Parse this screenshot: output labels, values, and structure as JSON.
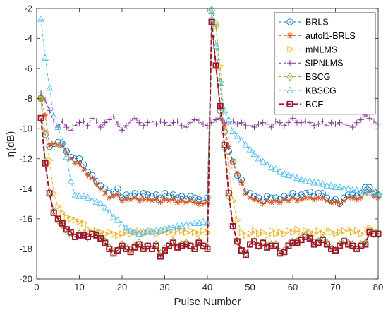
{
  "chart_data": {
    "type": "line",
    "xlabel": "Pulse Number",
    "ylabel": "η(dB)",
    "xlim": [
      0,
      80
    ],
    "ylim": [
      -20,
      -2
    ],
    "xticks": [
      0,
      10,
      20,
      30,
      40,
      50,
      60,
      70,
      80
    ],
    "yticks": [
      -20,
      -18,
      -16,
      -14,
      -12,
      -10,
      -8,
      -6,
      -4,
      -2
    ],
    "grid": false,
    "legend_position": "top-right",
    "x": [
      1,
      2,
      3,
      4,
      5,
      6,
      7,
      8,
      9,
      10,
      11,
      12,
      13,
      14,
      15,
      16,
      17,
      18,
      19,
      20,
      21,
      22,
      23,
      24,
      25,
      26,
      27,
      28,
      29,
      30,
      31,
      32,
      33,
      34,
      35,
      36,
      37,
      38,
      39,
      40,
      41,
      42,
      43,
      44,
      45,
      46,
      47,
      48,
      49,
      50,
      51,
      52,
      53,
      54,
      55,
      56,
      57,
      58,
      59,
      60,
      61,
      62,
      63,
      64,
      65,
      66,
      67,
      68,
      69,
      70,
      71,
      72,
      73,
      74,
      75,
      76,
      77,
      78,
      79,
      80
    ],
    "series": [
      {
        "name": "BRLS",
        "color": "#0072BD",
        "marker": "circle",
        "dash": "4,3",
        "width": 1,
        "values": [
          -8.0,
          -10.4,
          -11.2,
          -11.0,
          -10.9,
          -11.0,
          -11.5,
          -11.9,
          -12.0,
          -12.0,
          -12.4,
          -12.9,
          -13.1,
          -13.5,
          -13.8,
          -14.0,
          -14.3,
          -14.2,
          -14.0,
          -14.6,
          -14.4,
          -14.5,
          -14.3,
          -14.5,
          -14.3,
          -14.4,
          -14.5,
          -14.4,
          -14.6,
          -14.3,
          -14.5,
          -14.4,
          -14.6,
          -14.5,
          -14.7,
          -14.5,
          -14.6,
          -14.7,
          -14.8,
          -14.6,
          -2.8,
          -5.8,
          -8.8,
          -10.2,
          -11.5,
          -12.2,
          -13.1,
          -13.4,
          -14.2,
          -14.3,
          -14.5,
          -14.6,
          -14.8,
          -14.5,
          -14.6,
          -14.6,
          -14.7,
          -14.5,
          -14.6,
          -14.3,
          -14.5,
          -14.4,
          -14.3,
          -14.2,
          -14.5,
          -14.3,
          -14.3,
          -14.6,
          -14.8,
          -14.7,
          -15.0,
          -14.6,
          -14.4,
          -14.4,
          -14.5,
          -14.3,
          -13.9,
          -13.9,
          -14.2,
          -14.4
        ]
      },
      {
        "name": "autol1-BRLS",
        "color": "#D95319",
        "marker": "asterisk",
        "dash": "4,3",
        "width": 1,
        "values": [
          -8.0,
          -9.1,
          -11.1,
          -11.0,
          -11.1,
          -11.1,
          -11.6,
          -12.0,
          -12.3,
          -12.3,
          -12.7,
          -13.1,
          -13.3,
          -13.7,
          -14.0,
          -14.3,
          -14.6,
          -14.5,
          -14.4,
          -14.8,
          -14.7,
          -14.7,
          -14.6,
          -14.8,
          -14.7,
          -14.7,
          -14.8,
          -14.7,
          -14.9,
          -14.7,
          -14.8,
          -14.7,
          -14.9,
          -14.8,
          -14.9,
          -14.8,
          -14.9,
          -15.0,
          -15.0,
          -14.9,
          -2.9,
          -5.9,
          -8.6,
          -9.8,
          -11.2,
          -12.2,
          -13.0,
          -13.6,
          -14.3,
          -14.6,
          -14.7,
          -14.8,
          -15.0,
          -14.8,
          -14.9,
          -14.8,
          -14.9,
          -14.7,
          -14.8,
          -14.6,
          -14.8,
          -14.7,
          -14.6,
          -14.6,
          -14.7,
          -14.6,
          -14.6,
          -14.8,
          -14.9,
          -14.9,
          -15.0,
          -14.8,
          -14.6,
          -14.6,
          -14.7,
          -14.6,
          -14.3,
          -14.2,
          -14.5,
          -14.6
        ]
      },
      {
        "name": "mNLMS",
        "color": "#EDB120",
        "marker": "triangle-right",
        "dash": "4,3",
        "width": 1,
        "values": [
          -8.0,
          -10.2,
          -12.1,
          -14.3,
          -15.2,
          -15.6,
          -15.9,
          -16.0,
          -16.1,
          -16.2,
          -16.3,
          -16.7,
          -16.9,
          -16.8,
          -16.9,
          -17.0,
          -16.9,
          -17.0,
          -17.1,
          -17.0,
          -16.9,
          -17.0,
          -16.9,
          -16.8,
          -17.0,
          -16.9,
          -16.8,
          -17.0,
          -16.9,
          -16.8,
          -16.9,
          -17.0,
          -16.7,
          -16.8,
          -16.9,
          -16.8,
          -16.9,
          -17.0,
          -16.8,
          -16.9,
          -2.9,
          -3.2,
          -5.8,
          -10.0,
          -12.6,
          -14.8,
          -16.1,
          -16.9,
          -17.1,
          -17.0,
          -16.8,
          -17.0,
          -16.9,
          -17.1,
          -16.8,
          -17.0,
          -16.9,
          -17.0,
          -16.8,
          -16.9,
          -16.7,
          -17.0,
          -16.8,
          -16.9,
          -17.0,
          -16.8,
          -17.0,
          -16.7,
          -16.9,
          -17.0,
          -16.9,
          -16.8,
          -16.7,
          -16.9,
          -16.8,
          -17.0,
          -16.7,
          -16.6,
          -16.8,
          -16.9
        ]
      },
      {
        "name": "$IPNLMS",
        "color": "#7E2F8E",
        "marker": "plus",
        "dash": "4,3",
        "width": 1,
        "values": [
          -7.6,
          -8.1,
          -8.8,
          -9.5,
          -9.9,
          -9.5,
          -9.9,
          -10.1,
          -9.8,
          -9.6,
          -9.5,
          -9.8,
          -9.3,
          -9.5,
          -9.9,
          -9.6,
          -9.4,
          -9.2,
          -9.7,
          -10.1,
          -9.8,
          -9.5,
          -9.3,
          -9.6,
          -9.8,
          -9.6,
          -9.5,
          -9.7,
          -9.5,
          -9.6,
          -9.8,
          -9.6,
          -9.5,
          -9.8,
          -9.9,
          -9.6,
          -9.4,
          -9.5,
          -9.7,
          -9.8,
          -9.6,
          -9.4,
          -9.3,
          -9.6,
          -9.7,
          -9.5,
          -9.7,
          -9.6,
          -9.8,
          -9.8,
          -9.9,
          -9.7,
          -9.6,
          -9.7,
          -9.9,
          -9.5,
          -9.6,
          -9.8,
          -9.6,
          -9.3,
          -9.6,
          -9.6,
          -9.5,
          -9.6,
          -9.8,
          -9.7,
          -9.5,
          -9.8,
          -9.6,
          -9.7,
          -9.6,
          -9.7,
          -9.8,
          -9.9,
          -9.6,
          -9.4,
          -9.1,
          -9.3,
          -9.5,
          -9.7
        ]
      },
      {
        "name": "BSCG",
        "color": "#77AC30",
        "marker": "diamond",
        "dash": "4,3",
        "width": 1,
        "values": [
          -7.9,
          -12.2,
          -14.2,
          -15.5,
          -16.1,
          -16.4,
          -16.8,
          -17.0,
          -17.2,
          -17.0,
          -17.0,
          -17.2,
          -17.0,
          -17.0,
          -17.2,
          -17.5,
          -17.9,
          -18.2,
          -18.1,
          -17.7,
          -17.9,
          -18.1,
          -17.8,
          -17.6,
          -17.9,
          -17.8,
          -18.0,
          -17.7,
          -18.3,
          -18.0,
          -17.7,
          -17.5,
          -17.9,
          -17.7,
          -17.6,
          -17.8,
          -17.9,
          -17.5,
          -17.8,
          -17.9,
          -2.1,
          -3.0,
          -6.9,
          -11.3,
          -14.5,
          -16.5,
          -17.5,
          -18.1,
          -18.3,
          -17.7,
          -17.5,
          -17.8,
          -17.6,
          -17.8,
          -17.7,
          -17.7,
          -18.2,
          -18.1,
          -17.7,
          -17.5,
          -17.5,
          -17.3,
          -17.1,
          -17.2,
          -17.6,
          -17.5,
          -17.3,
          -17.6,
          -17.9,
          -18.1,
          -17.7,
          -17.4,
          -17.6,
          -17.7,
          -17.9,
          -17.7,
          -17.6,
          -16.8,
          -17.0,
          -17.0
        ]
      },
      {
        "name": "KBSCG",
        "color": "#4DBEEE",
        "marker": "triangle-up",
        "dash": "4,3",
        "width": 1,
        "values": [
          -2.7,
          -5.3,
          -7.3,
          -9.2,
          -9.9,
          -10.9,
          -11.9,
          -13.5,
          -14.4,
          -14.5,
          -14.5,
          -14.6,
          -14.8,
          -14.9,
          -15.0,
          -15.3,
          -15.6,
          -15.9,
          -16.1,
          -16.4,
          -16.6,
          -16.8,
          -16.9,
          -17.0,
          -16.9,
          -16.8,
          -16.9,
          -16.8,
          -16.8,
          -16.7,
          -16.6,
          -16.6,
          -16.5,
          -16.5,
          -16.4,
          -16.4,
          -16.3,
          -16.3,
          -16.2,
          -16.3,
          -2.2,
          -4.5,
          -7.0,
          -8.8,
          -9.4,
          -10.2,
          -10.5,
          -10.8,
          -11.1,
          -11.4,
          -11.7,
          -12.0,
          -12.2,
          -12.4,
          -12.6,
          -12.7,
          -12.9,
          -13.0,
          -13.1,
          -13.2,
          -13.3,
          -13.4,
          -13.5,
          -13.5,
          -13.6,
          -13.6,
          -13.7,
          -13.8,
          -13.8,
          -13.9,
          -13.9,
          -14.0,
          -14.0,
          -14.1,
          -14.1,
          -14.2,
          -14.2,
          -14.3,
          -14.3,
          -14.4
        ]
      },
      {
        "name": "BCE",
        "color": "#A2142F",
        "marker": "square",
        "dash": "7,3",
        "width": 2,
        "values": [
          -9.3,
          -12.3,
          -14.3,
          -15.6,
          -16.0,
          -16.3,
          -16.7,
          -16.9,
          -17.2,
          -17.1,
          -17.1,
          -17.2,
          -17.0,
          -17.1,
          -17.3,
          -17.6,
          -18.0,
          -18.3,
          -18.1,
          -17.8,
          -18.0,
          -18.2,
          -17.9,
          -17.7,
          -18.0,
          -17.8,
          -18.0,
          -17.8,
          -18.5,
          -18.1,
          -17.8,
          -17.6,
          -17.9,
          -17.8,
          -17.7,
          -17.8,
          -18.0,
          -17.6,
          -17.8,
          -18.0,
          -2.9,
          -5.8,
          -8.5,
          -11.1,
          -14.3,
          -16.5,
          -17.5,
          -18.1,
          -18.4,
          -17.7,
          -17.5,
          -17.8,
          -17.6,
          -17.9,
          -17.8,
          -17.8,
          -18.3,
          -18.2,
          -17.8,
          -17.6,
          -17.6,
          -17.4,
          -17.2,
          -17.3,
          -17.7,
          -17.6,
          -17.4,
          -17.7,
          -18.0,
          -18.1,
          -17.8,
          -17.5,
          -17.7,
          -17.8,
          -18.0,
          -17.8,
          -17.7,
          -16.9,
          -17.0,
          -17.0
        ]
      }
    ]
  }
}
